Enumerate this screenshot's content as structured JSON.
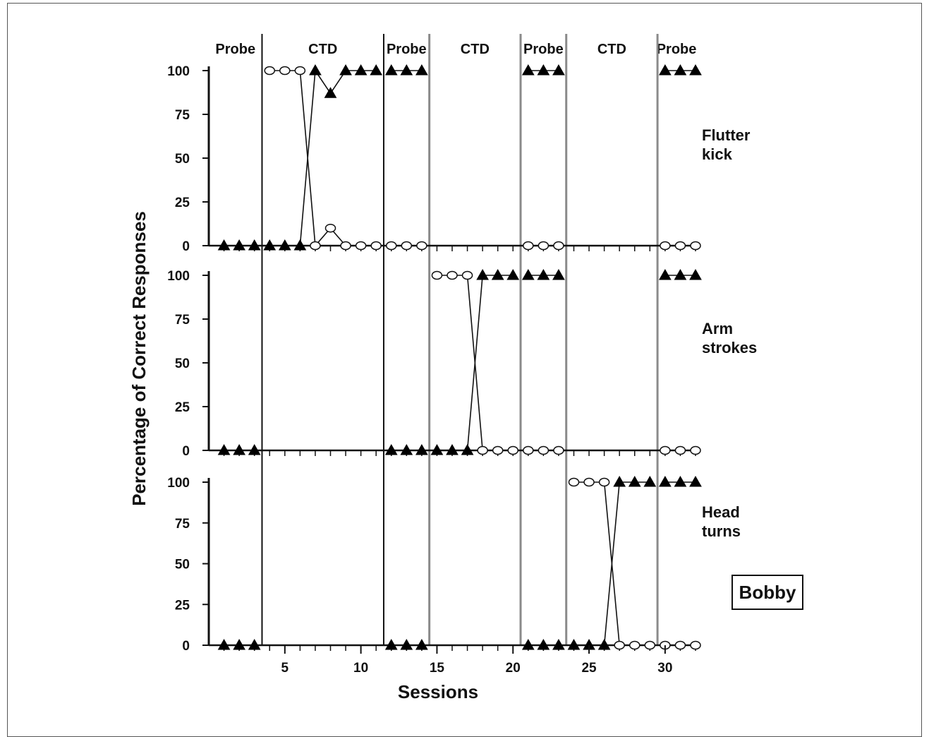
{
  "chart_data": {
    "type": "line",
    "xlabel": "Sessions",
    "ylabel": "Percentage of Correct Responses",
    "participant": "Bobby",
    "x_ticks": [
      5,
      10,
      15,
      20,
      25,
      30
    ],
    "y_ticks": [
      0,
      25,
      50,
      75,
      100
    ],
    "xlim": [
      0,
      32
    ],
    "ylim": [
      0,
      100
    ],
    "phases": [
      {
        "label": "Probe",
        "start": 0,
        "end": 3.5
      },
      {
        "label": "CTD",
        "start": 3.5,
        "end": 11.5
      },
      {
        "label": "Probe",
        "start": 11.5,
        "end": 14.5
      },
      {
        "label": "CTD",
        "start": 14.5,
        "end": 20.5
      },
      {
        "label": "Probe",
        "start": 20.5,
        "end": 23.5
      },
      {
        "label": "CTD",
        "start": 23.5,
        "end": 29.5
      },
      {
        "label": "Probe",
        "start": 29.5,
        "end": 32
      }
    ],
    "tiers": [
      {
        "label": [
          "Flutter",
          "kick"
        ],
        "stair_lines": [
          3.5,
          11.5,
          14.5,
          20.5,
          23.5,
          29.5
        ],
        "series": [
          {
            "marker": "triangle",
            "segments": [
              [
                [
                  1,
                  0
                ],
                [
                  2,
                  0
                ],
                [
                  3,
                  0
                ]
              ],
              [
                [
                  4,
                  0
                ],
                [
                  5,
                  0
                ],
                [
                  6,
                  0
                ],
                [
                  7,
                  100
                ],
                [
                  8,
                  87
                ],
                [
                  9,
                  100
                ],
                [
                  10,
                  100
                ],
                [
                  11,
                  100
                ]
              ],
              [
                [
                  12,
                  100
                ],
                [
                  13,
                  100
                ],
                [
                  14,
                  100
                ]
              ],
              [
                [
                  21,
                  100
                ],
                [
                  22,
                  100
                ],
                [
                  23,
                  100
                ]
              ],
              [
                [
                  30,
                  100
                ],
                [
                  31,
                  100
                ],
                [
                  32,
                  100
                ]
              ]
            ]
          },
          {
            "marker": "circle",
            "segments": [
              [
                [
                  4,
                  100
                ],
                [
                  5,
                  100
                ],
                [
                  6,
                  100
                ],
                [
                  7,
                  0
                ],
                [
                  8,
                  10
                ],
                [
                  9,
                  0
                ],
                [
                  10,
                  0
                ],
                [
                  11,
                  0
                ]
              ],
              [
                [
                  12,
                  0
                ],
                [
                  13,
                  0
                ],
                [
                  14,
                  0
                ]
              ],
              [
                [
                  21,
                  0
                ],
                [
                  22,
                  0
                ],
                [
                  23,
                  0
                ]
              ],
              [
                [
                  30,
                  0
                ],
                [
                  31,
                  0
                ],
                [
                  32,
                  0
                ]
              ]
            ]
          }
        ]
      },
      {
        "label": [
          "Arm",
          "strokes"
        ],
        "stair_lines": [
          3.5,
          11.5,
          14.5,
          20.5,
          23.5,
          29.5
        ],
        "series": [
          {
            "marker": "triangle",
            "segments": [
              [
                [
                  1,
                  0
                ],
                [
                  2,
                  0
                ],
                [
                  3,
                  0
                ]
              ],
              [
                [
                  12,
                  0
                ],
                [
                  13,
                  0
                ],
                [
                  14,
                  0
                ]
              ],
              [
                [
                  15,
                  0
                ],
                [
                  16,
                  0
                ],
                [
                  17,
                  0
                ],
                [
                  18,
                  100
                ],
                [
                  19,
                  100
                ],
                [
                  20,
                  100
                ]
              ],
              [
                [
                  21,
                  100
                ],
                [
                  22,
                  100
                ],
                [
                  23,
                  100
                ]
              ],
              [
                [
                  30,
                  100
                ],
                [
                  31,
                  100
                ],
                [
                  32,
                  100
                ]
              ]
            ]
          },
          {
            "marker": "circle",
            "segments": [
              [
                [
                  15,
                  100
                ],
                [
                  16,
                  100
                ],
                [
                  17,
                  100
                ],
                [
                  18,
                  0
                ],
                [
                  19,
                  0
                ],
                [
                  20,
                  0
                ]
              ],
              [
                [
                  21,
                  0
                ],
                [
                  22,
                  0
                ],
                [
                  23,
                  0
                ]
              ],
              [
                [
                  30,
                  0
                ],
                [
                  31,
                  0
                ],
                [
                  32,
                  0
                ]
              ]
            ]
          }
        ]
      },
      {
        "label": [
          "Head",
          "turns"
        ],
        "stair_lines": [
          3.5,
          11.5,
          14.5,
          20.5,
          23.5,
          29.5
        ],
        "series": [
          {
            "marker": "triangle",
            "segments": [
              [
                [
                  1,
                  0
                ],
                [
                  2,
                  0
                ],
                [
                  3,
                  0
                ]
              ],
              [
                [
                  12,
                  0
                ],
                [
                  13,
                  0
                ],
                [
                  14,
                  0
                ]
              ],
              [
                [
                  21,
                  0
                ],
                [
                  22,
                  0
                ],
                [
                  23,
                  0
                ]
              ],
              [
                [
                  24,
                  0
                ],
                [
                  25,
                  0
                ],
                [
                  26,
                  0
                ],
                [
                  27,
                  100
                ],
                [
                  28,
                  100
                ],
                [
                  29,
                  100
                ]
              ],
              [
                [
                  30,
                  100
                ],
                [
                  31,
                  100
                ],
                [
                  32,
                  100
                ]
              ]
            ]
          },
          {
            "marker": "circle",
            "segments": [
              [
                [
                  24,
                  100
                ],
                [
                  25,
                  100
                ],
                [
                  26,
                  100
                ],
                [
                  27,
                  0
                ],
                [
                  28,
                  0
                ],
                [
                  29,
                  0
                ]
              ],
              [
                [
                  30,
                  0
                ],
                [
                  31,
                  0
                ],
                [
                  32,
                  0
                ]
              ]
            ]
          }
        ]
      }
    ]
  }
}
